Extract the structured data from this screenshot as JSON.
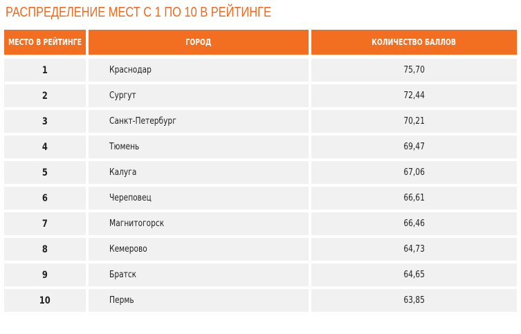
{
  "title": "РАСПРЕДЕЛЕНИЕ МЕСТ С 1 ПО 10 В РЕЙТИНГЕ",
  "columns": {
    "place": "МЕСТО В РЕЙТИНГЕ",
    "city": "ГОРОД",
    "score": "КОЛИЧЕСТВО БАЛЛОВ"
  },
  "rows": [
    {
      "place": "1",
      "city": "Краснодар",
      "score": "75,70"
    },
    {
      "place": "2",
      "city": "Сургут",
      "score": "72,44"
    },
    {
      "place": "3",
      "city": "Санкт-Петербург",
      "score": "70,21"
    },
    {
      "place": "4",
      "city": "Тюмень",
      "score": "69,47"
    },
    {
      "place": "5",
      "city": "Калуга",
      "score": "67,06"
    },
    {
      "place": "6",
      "city": "Череповец",
      "score": "66,61"
    },
    {
      "place": "7",
      "city": "Магнитогорск",
      "score": "66,46"
    },
    {
      "place": "8",
      "city": "Кемерово",
      "score": "64,73"
    },
    {
      "place": "9",
      "city": "Братск",
      "score": "64,65"
    },
    {
      "place": "10",
      "city": "Пермь",
      "score": "63,85"
    }
  ],
  "colors": {
    "accent": "#f26f21",
    "row_background": "#f1f1f1"
  }
}
